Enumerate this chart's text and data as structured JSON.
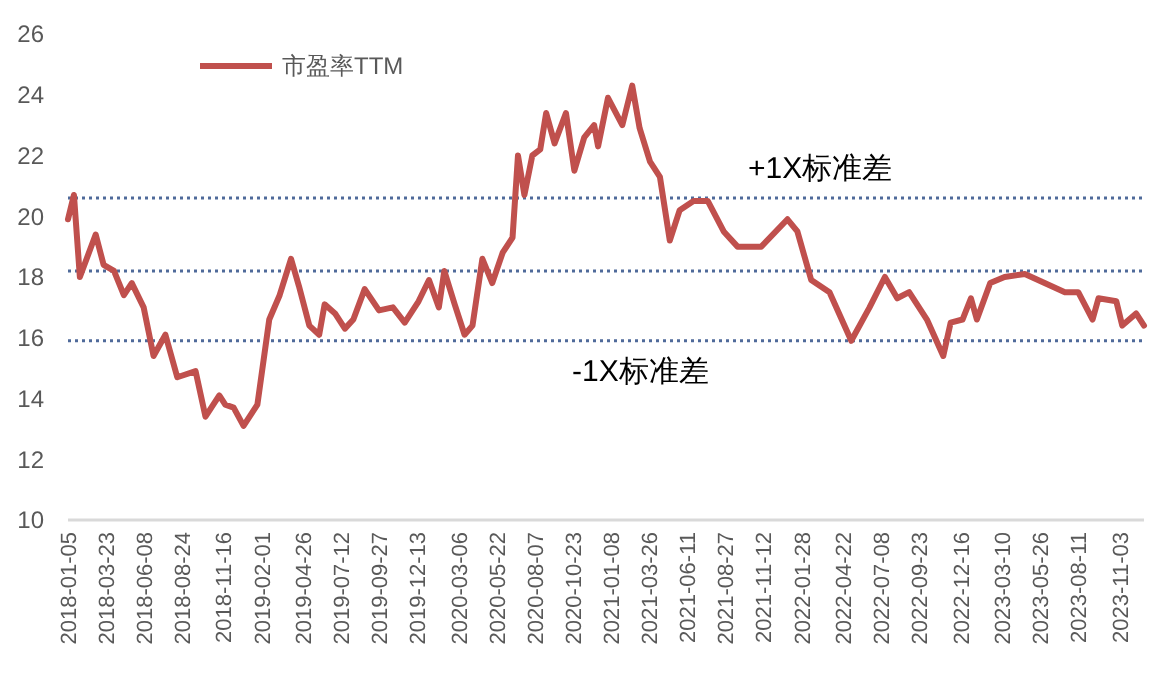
{
  "chart_data": {
    "type": "line",
    "legend": "top left",
    "grid": false,
    "xlim": [
      "2018-01-05",
      "2023-12-21"
    ],
    "ylim": [
      10,
      26
    ],
    "yticks": [
      10,
      12,
      14,
      16,
      18,
      20,
      22,
      24,
      26
    ],
    "xticks": [
      {
        "value": "2018-01-05",
        "label": "2018-01-05"
      },
      {
        "value": "2018-03-23",
        "label": "2018-03-23"
      },
      {
        "value": "2018-06-08",
        "label": "2018-06-08"
      },
      {
        "value": "2018-08-24",
        "label": "2018-08-24"
      },
      {
        "value": "2018-11-16",
        "label": "2018-11-16"
      },
      {
        "value": "2019-02-01",
        "label": "2019-02-01"
      },
      {
        "value": "2019-04-26",
        "label": "2019-04-26"
      },
      {
        "value": "2019-07-12",
        "label": "2019-07-12"
      },
      {
        "value": "2019-09-27",
        "label": "2019-09-27"
      },
      {
        "value": "2019-12-13",
        "label": "2019-12-13"
      },
      {
        "value": "2020-03-06",
        "label": "2020-03-06"
      },
      {
        "value": "2020-05-22",
        "label": "2020-05-22"
      },
      {
        "value": "2020-08-07",
        "label": "2020-08-07"
      },
      {
        "value": "2020-10-23",
        "label": "2020-10-23"
      },
      {
        "value": "2021-01-08",
        "label": "2021-01-08"
      },
      {
        "value": "2021-03-26",
        "label": "2021-03-26"
      },
      {
        "value": "2021-06-11",
        "label": "2021-06-11"
      },
      {
        "value": "2021-08-27",
        "label": "2021-08-27"
      },
      {
        "value": "2021-11-12",
        "label": "2021-11-12"
      },
      {
        "value": "2022-01-28",
        "label": "2022-01-28"
      },
      {
        "value": "2022-04-22",
        "label": "2022-04-22"
      },
      {
        "value": "2022-07-08",
        "label": "2022-07-08"
      },
      {
        "value": "2022-09-23",
        "label": "2022-09-23"
      },
      {
        "value": "2022-12-16",
        "label": "2022-12-16"
      },
      {
        "value": "2023-03-10",
        "label": "2023-03-10"
      },
      {
        "value": "2023-05-26",
        "label": "2023-05-26"
      },
      {
        "value": "2023-08-11",
        "label": "2023-08-11"
      },
      {
        "value": "2023-11-03",
        "label": "2023-11-03"
      }
    ],
    "x": [
      "2018-01-05",
      "2018-01-17",
      "2018-01-29",
      "2018-03-02",
      "2018-03-18",
      "2018-04-08",
      "2018-04-28",
      "2018-05-14",
      "2018-06-07",
      "2018-06-27",
      "2018-07-21",
      "2018-08-14",
      "2018-09-20",
      "2018-10-10",
      "2018-11-07",
      "2018-11-19",
      "2018-12-06",
      "2018-12-26",
      "2019-01-23",
      "2019-02-16",
      "2019-03-09",
      "2019-04-01",
      "2019-04-17",
      "2019-05-08",
      "2019-05-28",
      "2019-06-08",
      "2019-06-29",
      "2019-07-19",
      "2019-08-05",
      "2019-08-28",
      "2019-09-26",
      "2019-10-24",
      "2019-11-17",
      "2019-12-15",
      "2020-01-05",
      "2020-01-25",
      "2020-02-05",
      "2020-02-26",
      "2020-03-17",
      "2020-04-02",
      "2020-04-22",
      "2020-05-12",
      "2020-06-02",
      "2020-06-22",
      "2020-07-03",
      "2020-07-16",
      "2020-08-01",
      "2020-08-17",
      "2020-08-29",
      "2020-09-15",
      "2020-10-08",
      "2020-10-25",
      "2020-11-14",
      "2020-12-04",
      "2020-12-12",
      "2021-01-01",
      "2021-01-30",
      "2021-02-19",
      "2021-03-06",
      "2021-03-27",
      "2021-04-16",
      "2021-05-06",
      "2021-05-26",
      "2021-06-23",
      "2021-07-22",
      "2021-08-23",
      "2021-09-20",
      "2021-11-07",
      "2021-12-30",
      "2022-01-19",
      "2022-02-16",
      "2022-03-25",
      "2022-05-08",
      "2022-06-14",
      "2022-07-15",
      "2022-08-09",
      "2022-09-02",
      "2022-10-08",
      "2022-11-10",
      "2022-11-25",
      "2022-12-19",
      "2023-01-05",
      "2023-01-17",
      "2023-02-13",
      "2023-03-14",
      "2023-04-24",
      "2023-06-03",
      "2023-07-14",
      "2023-08-10",
      "2023-09-08",
      "2023-09-20",
      "2023-10-26",
      "2023-11-07",
      "2023-12-05",
      "2023-12-21"
    ],
    "series": [
      {
        "name": "市盈率TTM",
        "color": "#c0504d",
        "values": [
          19.9,
          20.7,
          18.0,
          19.4,
          18.4,
          18.2,
          17.4,
          17.8,
          17.0,
          15.4,
          16.1,
          14.7,
          14.9,
          13.4,
          14.1,
          13.8,
          13.7,
          13.1,
          13.8,
          16.6,
          17.4,
          18.6,
          17.7,
          16.4,
          16.1,
          17.1,
          16.8,
          16.3,
          16.6,
          17.6,
          16.9,
          17.0,
          16.5,
          17.2,
          17.9,
          17.0,
          18.2,
          17.1,
          16.1,
          16.4,
          18.6,
          17.8,
          18.8,
          19.3,
          22.0,
          20.7,
          22.0,
          22.2,
          23.4,
          22.4,
          23.4,
          21.5,
          22.6,
          23.0,
          22.3,
          23.9,
          23.0,
          24.3,
          22.9,
          21.8,
          21.3,
          19.2,
          20.2,
          20.5,
          20.5,
          19.5,
          19.0,
          19.0,
          19.9,
          19.5,
          17.9,
          17.5,
          15.9,
          17.0,
          18.0,
          17.3,
          17.5,
          16.6,
          15.4,
          16.5,
          16.6,
          17.3,
          16.6,
          17.8,
          18.0,
          18.1,
          17.8,
          17.5,
          17.5,
          16.6,
          17.3,
          17.2,
          16.4,
          16.8,
          16.4
        ]
      }
    ],
    "ref_lines": [
      {
        "axis": "y",
        "value": 20.6,
        "label": "+1X标准差",
        "color": "#4f6a9a",
        "line_style": "dotted"
      },
      {
        "axis": "y",
        "value": 18.2,
        "label": null,
        "color": "#4f6a9a",
        "line_style": "dotted"
      },
      {
        "axis": "y",
        "value": 15.9,
        "label": "-1X标准差",
        "color": "#4f6a9a",
        "line_style": "dotted"
      }
    ]
  }
}
